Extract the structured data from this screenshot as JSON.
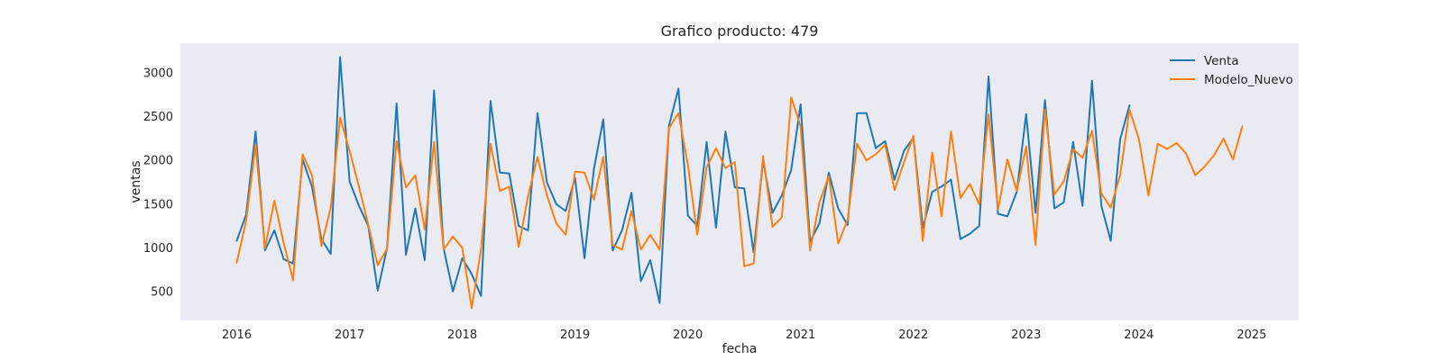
{
  "chart_data": {
    "type": "line",
    "title": "Grafico producto: 479",
    "xlabel": "fecha",
    "ylabel": "ventas",
    "x_ticks": [
      "2016",
      "2017",
      "2018",
      "2019",
      "2020",
      "2021",
      "2022",
      "2023",
      "2024",
      "2025"
    ],
    "y_ticks": [
      500,
      1000,
      1500,
      2000,
      2500,
      3000
    ],
    "xlim": [
      "2015-07",
      "2025-06"
    ],
    "ylim": [
      170,
      3340
    ],
    "grid": false,
    "legend_position": "top-right",
    "background_color": "#eaeaf2",
    "series": [
      {
        "name": "Venta",
        "color": "#1f77b4",
        "start": "2016-01",
        "frequency": "monthly",
        "values": [
          1080,
          1380,
          2330,
          970,
          1200,
          870,
          820,
          2010,
          1700,
          1100,
          930,
          3180,
          1760,
          1480,
          1250,
          510,
          1000,
          2650,
          920,
          1450,
          860,
          2800,
          1000,
          500,
          880,
          700,
          450,
          2680,
          1860,
          1850,
          1250,
          1200,
          2540,
          1750,
          1500,
          1420,
          1800,
          880,
          1900,
          2470,
          970,
          1200,
          1630,
          620,
          860,
          370,
          2400,
          2820,
          1370,
          1250,
          2210,
          1230,
          2330,
          1690,
          1680,
          950,
          2000,
          1400,
          1600,
          1890,
          2640,
          1070,
          1280,
          1860,
          1450,
          1260,
          2540,
          2540,
          2140,
          2220,
          1780,
          2110,
          2260,
          1230,
          1640,
          1700,
          1780,
          1100,
          1160,
          1250,
          2960,
          1390,
          1360,
          1640,
          2530,
          1400,
          2690,
          1450,
          1520,
          2210,
          1480,
          2910,
          1480,
          1080,
          2240,
          2630
        ]
      },
      {
        "name": "Modelo_Nuevo",
        "color": "#ff7f0e",
        "start": "2016-01",
        "frequency": "monthly",
        "values": [
          830,
          1310,
          2180,
          1000,
          1540,
          1050,
          630,
          2070,
          1830,
          1020,
          1460,
          2490,
          2110,
          1700,
          1260,
          800,
          990,
          2220,
          1690,
          1830,
          1210,
          2210,
          980,
          1130,
          1000,
          310,
          990,
          2190,
          1650,
          1700,
          1010,
          1590,
          2040,
          1600,
          1280,
          1150,
          1870,
          1860,
          1550,
          2040,
          1030,
          980,
          1420,
          980,
          1150,
          980,
          2370,
          2540,
          1950,
          1150,
          1920,
          2140,
          1910,
          1980,
          790,
          820,
          2050,
          1240,
          1350,
          2720,
          2390,
          970,
          1520,
          1820,
          1050,
          1320,
          2190,
          2000,
          2070,
          2180,
          1660,
          1980,
          2280,
          1080,
          2090,
          1360,
          2330,
          1570,
          1730,
          1500,
          2530,
          1440,
          2010,
          1650,
          2160,
          1030,
          2580,
          1610,
          1760,
          2130,
          2030,
          2340,
          1620,
          1460,
          1830,
          2580,
          2240,
          1600,
          2190,
          2130,
          2200,
          2080,
          1830,
          1930,
          2060,
          2250,
          2010,
          2390
        ]
      }
    ]
  }
}
